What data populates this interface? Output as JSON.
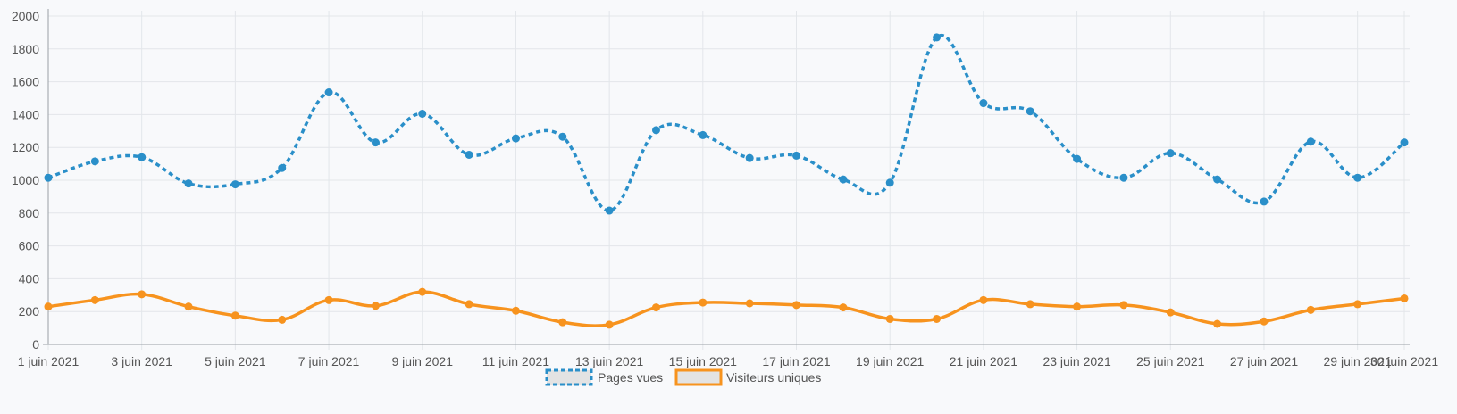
{
  "chart_data": {
    "type": "line",
    "x": [
      "1 juin 2021",
      "2 juin 2021",
      "3 juin 2021",
      "4 juin 2021",
      "5 juin 2021",
      "6 juin 2021",
      "7 juin 2021",
      "8 juin 2021",
      "9 juin 2021",
      "10 juin 2021",
      "11 juin 2021",
      "12 juin 2021",
      "13 juin 2021",
      "14 juin 2021",
      "15 juin 2021",
      "16 juin 2021",
      "17 juin 2021",
      "18 juin 2021",
      "19 juin 2021",
      "20 juin 2021",
      "21 juin 2021",
      "22 juin 2021",
      "23 juin 2021",
      "24 juin 2021",
      "25 juin 2021",
      "26 juin 2021",
      "27 juin 2021",
      "28 juin 2021",
      "29 juin 2021",
      "30 juin 2021"
    ],
    "x_tick_labels": [
      "1 juin 2021",
      "3 juin 2021",
      "5 juin 2021",
      "7 juin 2021",
      "9 juin 2021",
      "11 juin 2021",
      "13 juin 2021",
      "15 juin 2021",
      "17 juin 2021",
      "19 juin 2021",
      "21 juin 2021",
      "23 juin 2021",
      "25 juin 2021",
      "27 juin 2021",
      "29 juin 2021",
      "30 juin 2021"
    ],
    "y_ticks": [
      0,
      200,
      400,
      600,
      800,
      1000,
      1200,
      1400,
      1600,
      1800,
      2000
    ],
    "ylim": [
      0,
      2000
    ],
    "grid": true,
    "legend_position": "bottom",
    "series": [
      {
        "name": "Pages vues",
        "color": "#2a8fc9",
        "style": "dashed",
        "values": [
          1015,
          1115,
          1140,
          980,
          975,
          1075,
          1535,
          1230,
          1405,
          1155,
          1255,
          1265,
          815,
          1305,
          1275,
          1135,
          1150,
          1005,
          985,
          1870,
          1470,
          1420,
          1130,
          1015,
          1165,
          1005,
          870,
          1235,
          1015,
          1230
        ]
      },
      {
        "name": "Visiteurs uniques",
        "color": "#f7931e",
        "style": "solid",
        "values": [
          230,
          270,
          305,
          230,
          175,
          150,
          270,
          235,
          320,
          245,
          205,
          135,
          120,
          225,
          255,
          250,
          240,
          225,
          155,
          155,
          270,
          245,
          230,
          240,
          195,
          125,
          140,
          210,
          245,
          280
        ]
      }
    ]
  }
}
